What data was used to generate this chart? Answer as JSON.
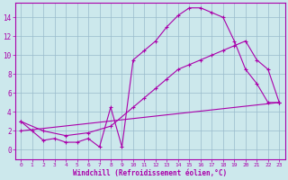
{
  "background_color": "#cce8ec",
  "line_color": "#aa00aa",
  "grid_color": "#99bbcc",
  "xlabel": "Windchill (Refroidissement éolien,°C)",
  "xlim": [
    -0.5,
    23.5
  ],
  "ylim": [
    -1.0,
    15.5
  ],
  "yticks": [
    0,
    2,
    4,
    6,
    8,
    10,
    12,
    14
  ],
  "xticks": [
    0,
    1,
    2,
    3,
    4,
    5,
    6,
    7,
    8,
    9,
    10,
    11,
    12,
    13,
    14,
    15,
    16,
    17,
    18,
    19,
    20,
    21,
    22,
    23
  ],
  "line1_x": [
    0,
    1,
    2,
    3,
    4,
    5,
    6,
    7,
    8,
    9,
    10,
    11,
    12,
    13,
    14,
    15,
    16,
    17,
    18,
    19,
    20,
    21,
    22,
    23
  ],
  "line1_y": [
    3.0,
    2.0,
    1.0,
    1.2,
    0.8,
    0.8,
    1.2,
    0.3,
    4.5,
    0.3,
    9.5,
    10.5,
    11.5,
    13.0,
    14.2,
    15.0,
    15.0,
    14.5,
    14.0,
    11.5,
    8.5,
    7.0,
    5.0,
    5.0
  ],
  "line2_x": [
    0,
    2,
    4,
    6,
    8,
    10,
    11,
    12,
    13,
    14,
    15,
    16,
    17,
    18,
    19,
    20,
    21,
    22,
    23
  ],
  "line2_y": [
    3.0,
    2.0,
    1.5,
    1.8,
    2.5,
    4.5,
    5.5,
    6.5,
    7.5,
    8.5,
    9.0,
    9.5,
    10.0,
    10.5,
    11.0,
    11.5,
    9.5,
    8.5,
    5.0
  ],
  "line3_x": [
    0,
    23
  ],
  "line3_y": [
    2.0,
    5.0
  ]
}
